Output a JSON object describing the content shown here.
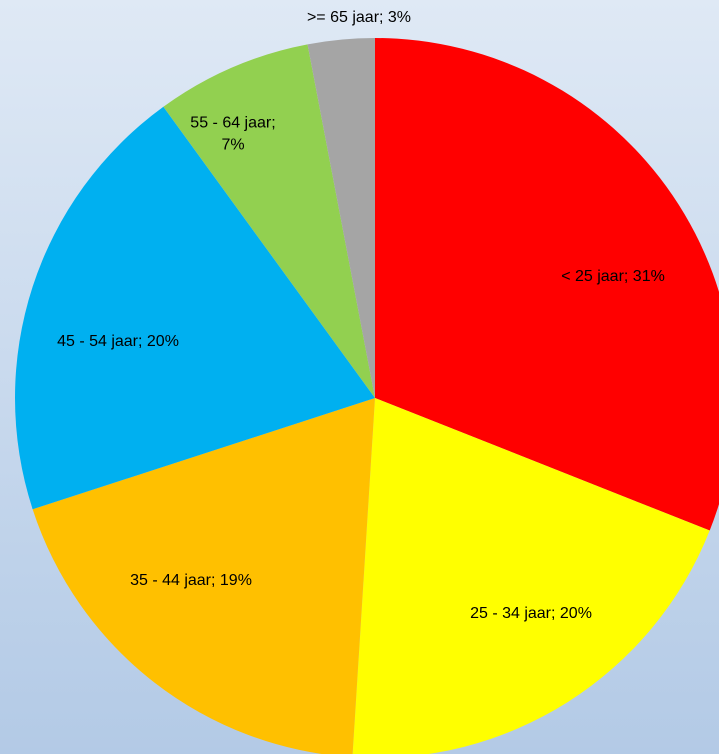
{
  "chart_data": {
    "type": "pie",
    "values": [
      31,
      20,
      19,
      20,
      7,
      3
    ],
    "value_labels": [
      "< 25 jaar; 31%",
      "25 - 34 jaar; 20%",
      "35 - 44 jaar; 19%",
      "45 - 54 jaar; 20%",
      "55 - 64 jaar; 7%",
      ">= 65 jaar; 3%"
    ],
    "colors": [
      "#ff0000",
      "#ffff00",
      "#ffc000",
      "#00b0f0",
      "#92d050",
      "#a5a5a5"
    ]
  }
}
